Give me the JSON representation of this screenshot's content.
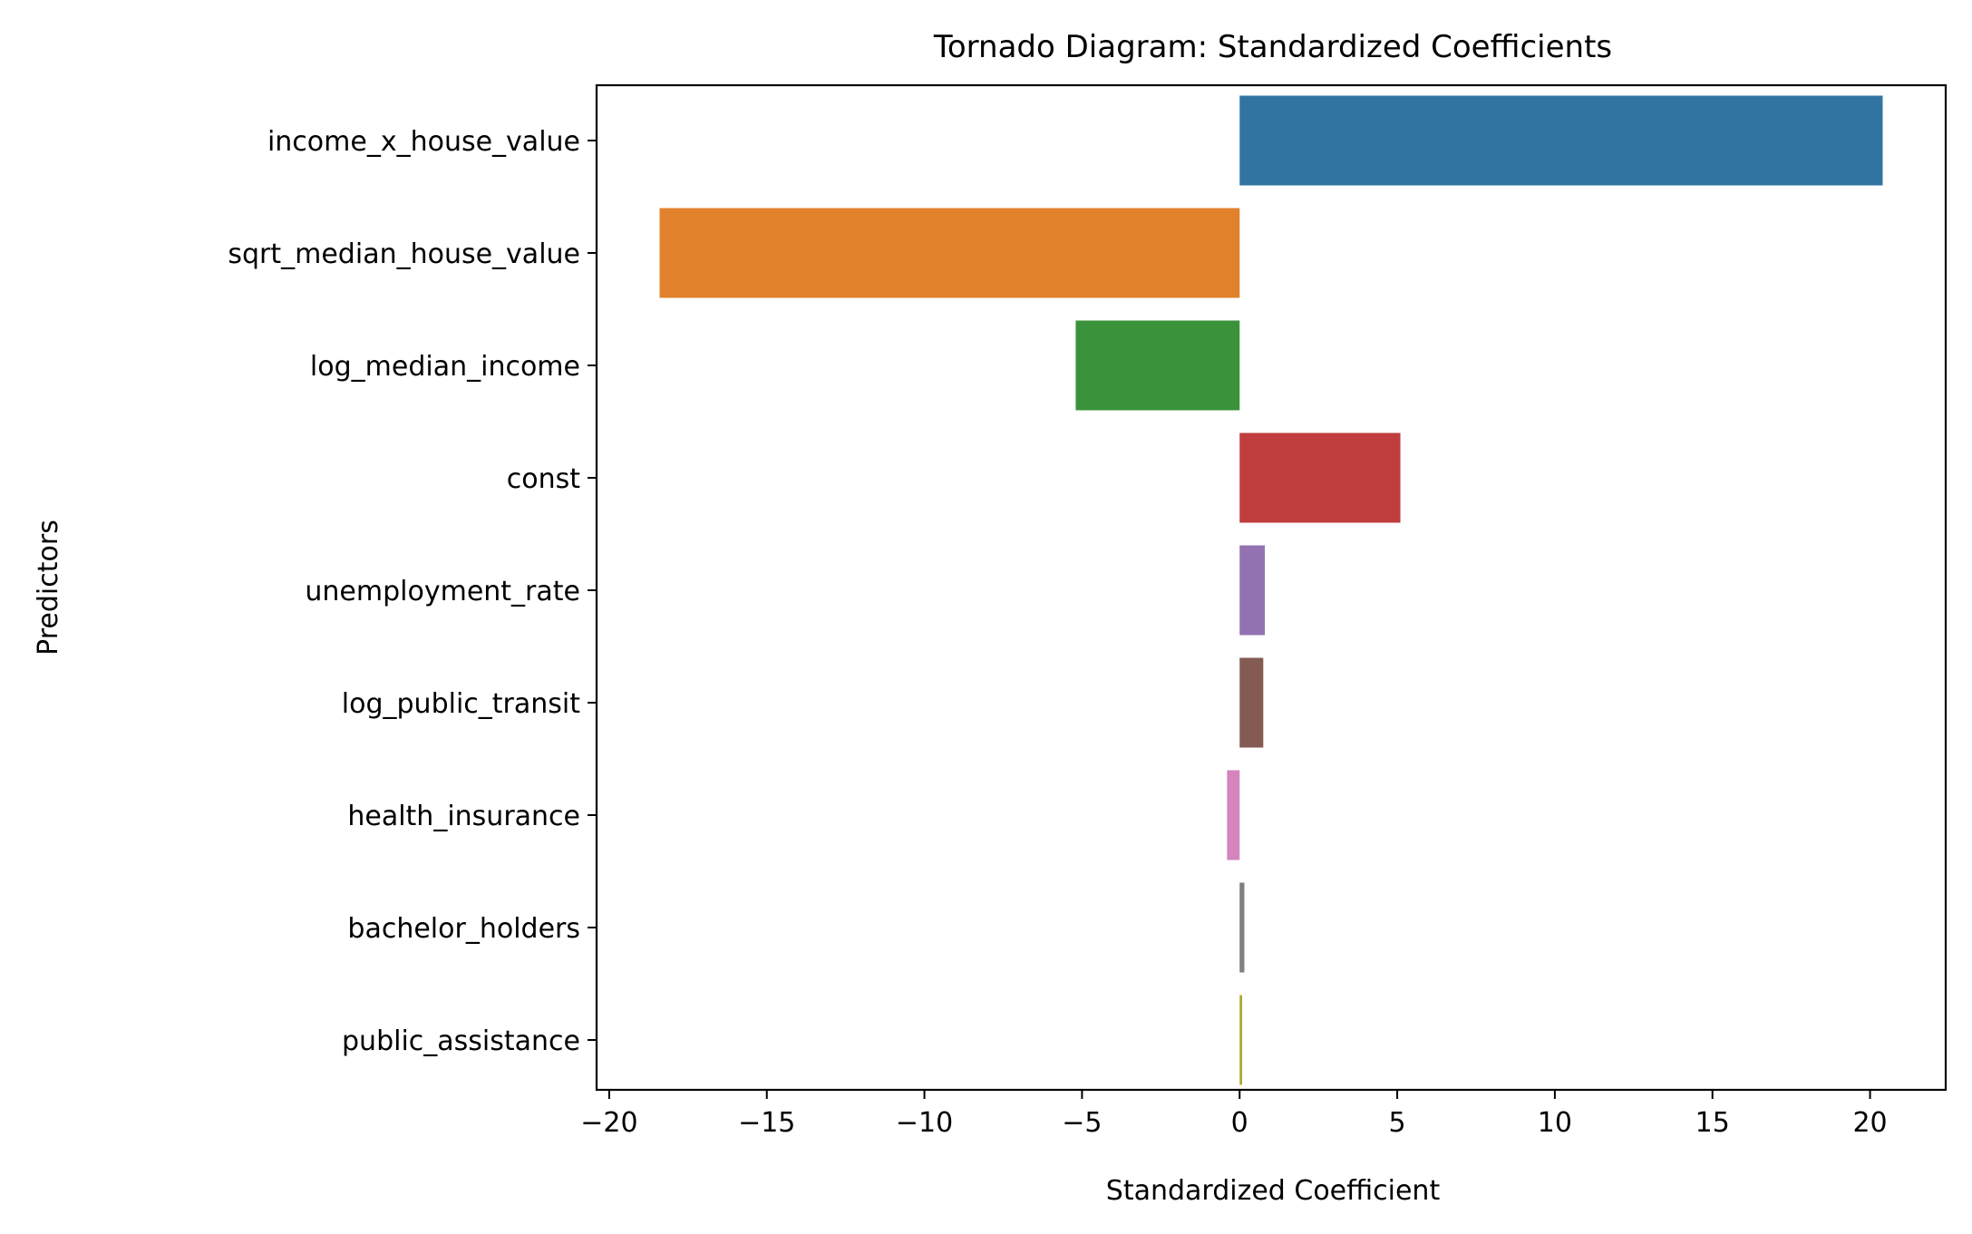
{
  "chart_data": {
    "type": "bar",
    "orientation": "horizontal",
    "title": "Tornado Diagram: Standardized Coefficients",
    "xlabel": "Standardized Coefficient",
    "ylabel": "Predictors",
    "categories": [
      "income_x_house_value",
      "sqrt_median_house_value",
      "log_median_income",
      "const",
      "unemployment_rate",
      "log_public_transit",
      "health_insurance",
      "bachelor_holders",
      "public_assistance"
    ],
    "values": [
      20.4,
      -18.4,
      -5.2,
      5.1,
      0.8,
      0.75,
      -0.4,
      0.15,
      0.08
    ],
    "colors": [
      "#3274a1",
      "#e1812c",
      "#3a923a",
      "#c03d3e",
      "#9372b2",
      "#845b53",
      "#d684bd",
      "#7f7f7f",
      "#a9aa35"
    ],
    "xlim": [
      -20.4,
      22.4
    ],
    "xticks": [
      -20,
      -15,
      -10,
      -5,
      0,
      5,
      10,
      15,
      20
    ],
    "xtick_labels": [
      "−20",
      "−15",
      "−10",
      "−5",
      "0",
      "5",
      "10",
      "15",
      "20"
    ],
    "grid": false,
    "legend": "none"
  }
}
